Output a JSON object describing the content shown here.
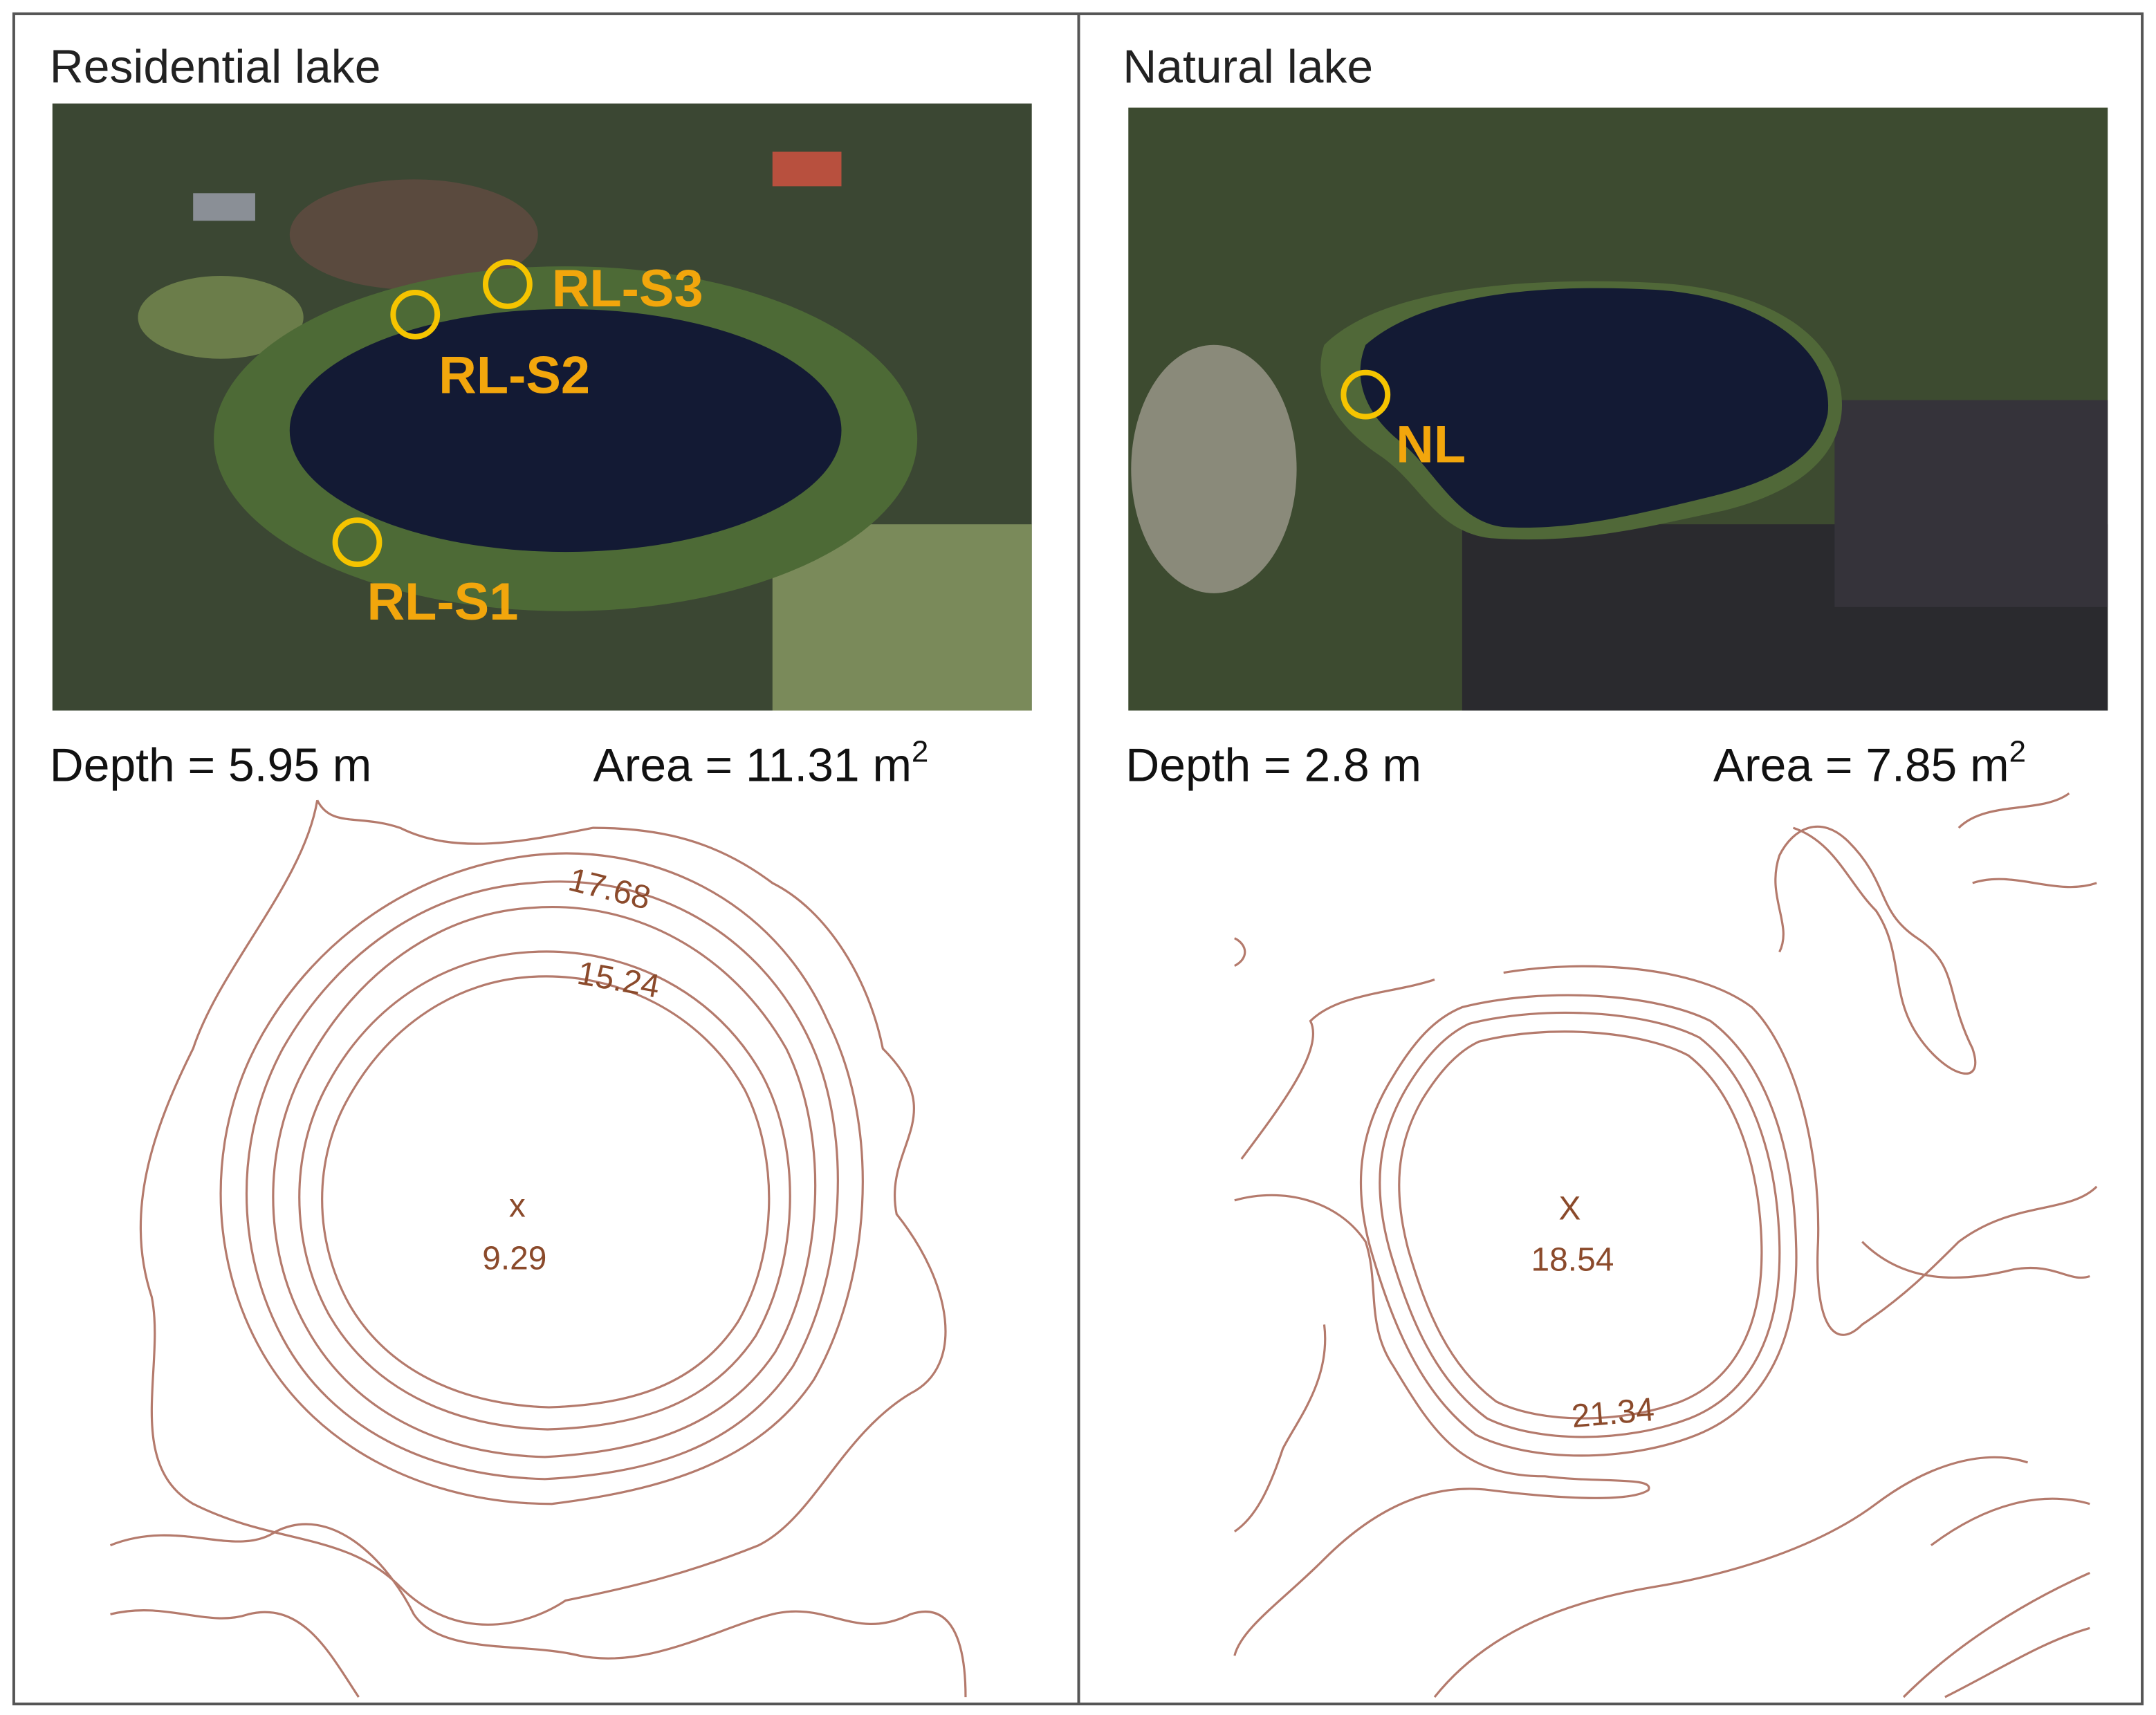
{
  "panels": [
    {
      "title": "Residential lake",
      "sites": [
        "RL-S3",
        "RL-S2",
        "RL-S1"
      ],
      "depth": "Depth = 5.95 m",
      "area": {
        "text": "Area = 11.31 m",
        "sup": "2"
      },
      "contour_labels": [
        "17.68",
        "15.24"
      ],
      "center": {
        "mark": "x",
        "label": "9.29"
      }
    },
    {
      "title": "Natural lake",
      "sites": [
        "NL"
      ],
      "depth": "Depth = 2.8 m",
      "area": {
        "text": "Area = 7.85 m",
        "sup": "2"
      },
      "contour_labels": [
        "21.34"
      ],
      "center": {
        "mark": "X",
        "label": "18.54"
      }
    }
  ]
}
